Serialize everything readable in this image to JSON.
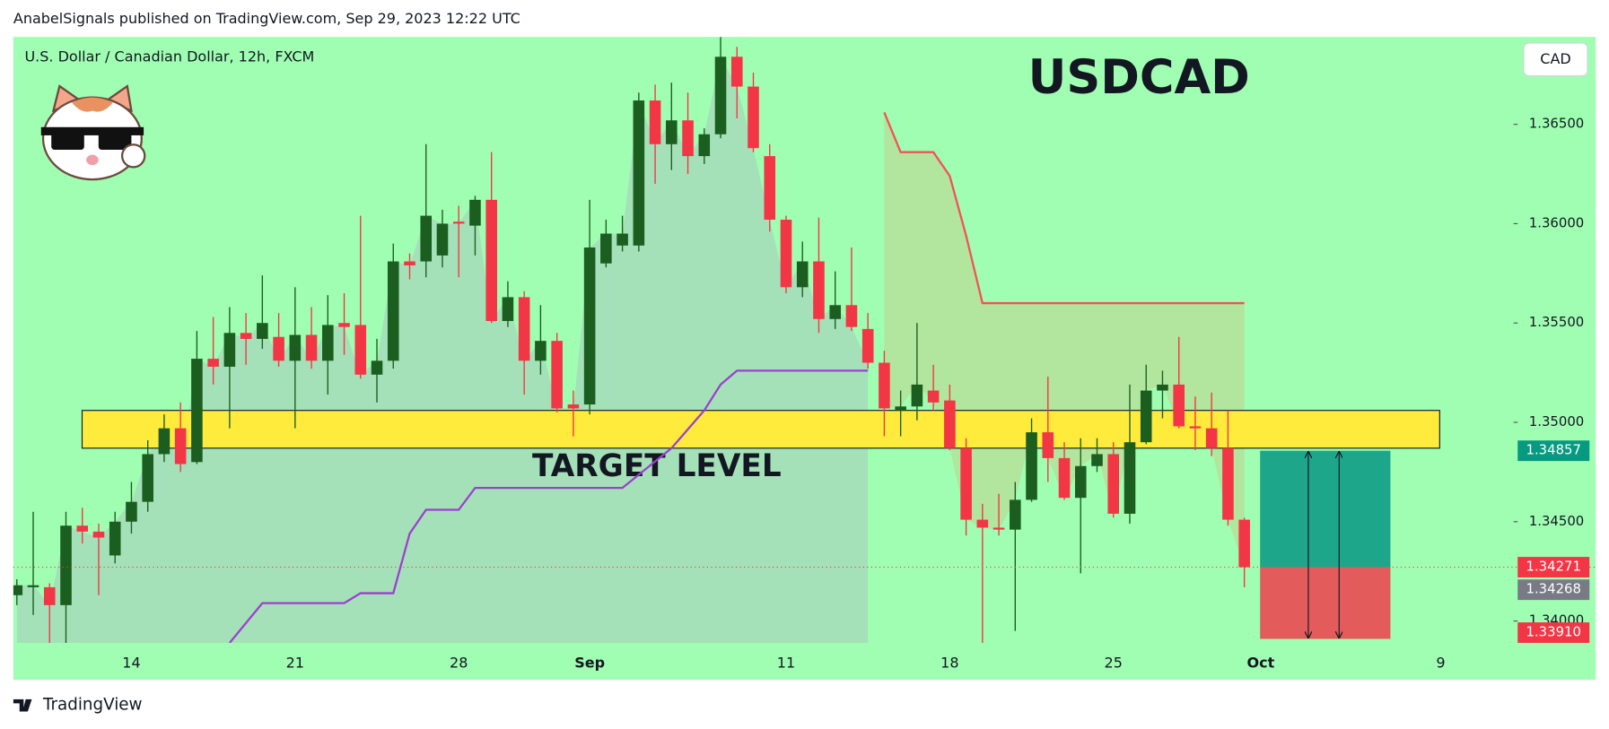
{
  "header": "AnabelSignals published on TradingView.com, Sep 29, 2023 12:22 UTC",
  "footer": "TradingView",
  "chart_data": {
    "type": "candlestick",
    "title": "USDCAD",
    "symbol": "U.S. Dollar / Canadian Dollar, 12h, FXCM",
    "currency": "CAD",
    "up_color": "#1b5e20",
    "down_color": "#f23645",
    "background": "#a0feb2",
    "grid": false,
    "categories": [
      null,
      null,
      null,
      null,
      null,
      null,
      null,
      "14",
      null,
      null,
      null,
      null,
      null,
      null,
      null,
      null,
      null,
      "21",
      null,
      null,
      null,
      null,
      null,
      null,
      null,
      null,
      null,
      "28",
      null,
      null,
      null,
      null,
      null,
      null,
      null,
      "Sep",
      null,
      null,
      null,
      null,
      null,
      null,
      null,
      null,
      null,
      null,
      null,
      "11",
      null,
      null,
      null,
      null,
      null,
      null,
      null,
      null,
      null,
      "18",
      null,
      null,
      null,
      null,
      null,
      null,
      null,
      null,
      null,
      "25",
      null,
      null,
      null,
      null,
      null,
      null,
      null,
      null,
      "Oct",
      null,
      null,
      null,
      null,
      null,
      null,
      null,
      null,
      null,
      null,
      "9",
      null,
      null,
      null,
      null
    ],
    "open": [
      1.3413,
      1.3417,
      1.3417,
      1.3408,
      1.3448,
      1.3445,
      1.3433,
      1.345,
      1.346,
      1.3484,
      1.3497,
      1.348,
      1.3532,
      1.3528,
      1.3545,
      1.3542,
      1.3543,
      1.3531,
      1.3544,
      1.3531,
      1.355,
      1.3549,
      1.3524,
      1.3531,
      1.3581,
      1.3581,
      1.3584,
      1.3601,
      1.3599,
      1.3612,
      1.3551,
      1.3563,
      1.3531,
      1.3541,
      1.3509,
      1.3509,
      1.358,
      1.3589,
      1.3589,
      1.3662,
      1.364,
      1.3652,
      1.3634,
      1.3645,
      1.3684,
      1.3669,
      1.3634,
      1.3602,
      1.3568,
      1.3581,
      1.3552,
      1.3559,
      1.3547,
      1.353,
      1.3506,
      1.3508,
      1.3516,
      1.3511,
      1.3487,
      1.3451,
      1.3447,
      1.3446,
      1.3461,
      1.3495,
      1.3482,
      1.3462,
      1.3478,
      1.3484,
      1.3454,
      1.349,
      1.3516,
      1.3519,
      1.3498,
      1.3497,
      1.3487,
      1.3451,
      null,
      null,
      null,
      null,
      null,
      null,
      null,
      null,
      null,
      null,
      null,
      null,
      null,
      null,
      null,
      null
    ],
    "high": [
      1.3421,
      1.3455,
      1.3419,
      1.3455,
      1.3457,
      1.3449,
      1.3455,
      1.347,
      1.3491,
      1.3504,
      1.351,
      1.3546,
      1.3553,
      1.3558,
      1.3555,
      1.3574,
      1.3555,
      1.3568,
      1.3558,
      1.3564,
      1.3565,
      1.3604,
      1.3542,
      1.359,
      1.3585,
      1.364,
      1.3607,
      1.3609,
      1.3614,
      1.3636,
      1.3571,
      1.3566,
      1.3559,
      1.3545,
      1.3516,
      1.3612,
      1.3602,
      1.3604,
      1.3666,
      1.367,
      1.3671,
      1.3666,
      1.3648,
      1.3694,
      1.3689,
      1.3676,
      1.364,
      1.3604,
      1.3591,
      1.3603,
      1.3576,
      1.3588,
      1.3555,
      1.3536,
      1.3516,
      1.355,
      1.3529,
      1.3519,
      1.3492,
      1.3459,
      1.3464,
      1.347,
      1.3502,
      1.3523,
      1.349,
      1.3492,
      1.3492,
      1.349,
      1.3519,
      1.3529,
      1.3526,
      1.3543,
      1.3513,
      1.3515,
      1.3506,
      1.3452,
      null,
      null,
      null,
      null,
      null,
      null,
      null,
      null,
      null,
      null,
      null,
      null,
      null,
      null,
      null,
      null
    ],
    "low": [
      1.3408,
      1.3403,
      1.3389,
      1.3389,
      1.3439,
      1.3413,
      1.3429,
      1.3444,
      1.3455,
      1.348,
      1.3475,
      1.3479,
      1.3519,
      1.3497,
      1.3529,
      1.3537,
      1.3528,
      1.3497,
      1.3527,
      1.3514,
      1.3534,
      1.3522,
      1.351,
      1.3527,
      1.3572,
      1.3573,
      1.3578,
      1.3573,
      1.3584,
      1.355,
      1.3548,
      1.3514,
      1.3524,
      1.3505,
      1.3493,
      1.3504,
      1.3578,
      1.3586,
      1.3586,
      1.362,
      1.3627,
      1.3625,
      1.363,
      1.3643,
      1.3653,
      1.3636,
      1.3596,
      1.3565,
      1.3563,
      1.3545,
      1.3547,
      1.3546,
      1.3527,
      1.3493,
      1.3493,
      1.3501,
      1.3506,
      1.3486,
      1.3443,
      1.3389,
      1.3443,
      1.3395,
      1.346,
      1.347,
      1.3461,
      1.3424,
      1.3475,
      1.3452,
      1.3449,
      1.3489,
      1.3502,
      1.3497,
      1.3486,
      1.3483,
      1.3448,
      1.3417,
      null,
      null,
      null,
      null,
      null,
      null,
      null,
      null,
      null,
      null,
      null,
      null,
      null,
      null,
      null,
      null
    ],
    "close": [
      1.3418,
      1.3418,
      1.3408,
      1.3448,
      1.3445,
      1.3442,
      1.345,
      1.346,
      1.3484,
      1.3497,
      1.3479,
      1.3532,
      1.3528,
      1.3545,
      1.3542,
      1.355,
      1.3531,
      1.3544,
      1.3531,
      1.3549,
      1.3548,
      1.3524,
      1.3531,
      1.3581,
      1.3579,
      1.3604,
      1.36,
      1.36,
      1.3612,
      1.3551,
      1.3563,
      1.3531,
      1.3541,
      1.3507,
      1.3507,
      1.3588,
      1.3595,
      1.3595,
      1.3662,
      1.364,
      1.3652,
      1.3634,
      1.3645,
      1.3684,
      1.3669,
      1.3638,
      1.3602,
      1.3568,
      1.3581,
      1.3552,
      1.3559,
      1.3548,
      1.353,
      1.3507,
      1.3508,
      1.3519,
      1.351,
      1.3487,
      1.3451,
      1.3447,
      1.3446,
      1.3461,
      1.3495,
      1.3482,
      1.3462,
      1.3478,
      1.3484,
      1.3454,
      1.349,
      1.3516,
      1.3519,
      1.3498,
      1.3497,
      1.3487,
      1.3451,
      1.34271,
      null,
      null,
      null,
      null,
      null,
      null,
      null,
      null,
      null,
      null,
      null,
      null,
      null,
      null,
      null,
      null
    ],
    "overlays": [
      {
        "color": "#f05454",
        "x": [
          53,
          54,
          56,
          57,
          58,
          59,
          75
        ],
        "values": [
          1.3656,
          1.3636,
          1.3636,
          1.3624,
          1.3594,
          1.356,
          1.356
        ]
      },
      {
        "color": "#9c3fd0",
        "x": [
          13,
          15,
          20,
          21,
          23,
          24,
          25,
          27,
          28,
          37,
          40,
          42,
          43,
          44,
          52
        ],
        "values": [
          1.3389,
          1.3409,
          1.3409,
          1.3414,
          1.3414,
          1.3444,
          1.3456,
          1.3456,
          1.3467,
          1.3467,
          1.3487,
          1.3506,
          1.3519,
          1.3526,
          1.3526
        ]
      }
    ],
    "zone": {
      "top": 1.3506,
      "bottom": 1.3487,
      "label": "TARGET LEVEL",
      "color": "#ffeb3b"
    },
    "price_labels": [
      {
        "value": 1.34857,
        "label": "1.34857",
        "color": "#089981"
      },
      {
        "value": 1.34271,
        "label": "1.34271",
        "color": "#f23645"
      },
      {
        "value": 1.34268,
        "label": "1.34268",
        "color": "#787b86"
      },
      {
        "value": 1.3391,
        "label": "1.33910",
        "color": "#f23645"
      }
    ],
    "ylim": [
      1.3389,
      1.3694
    ],
    "yticks": [
      {
        "value": 1.34,
        "label": "1.34000"
      },
      {
        "value": 1.345,
        "label": "1.34500"
      },
      {
        "value": 1.35,
        "label": "1.35000"
      },
      {
        "value": 1.355,
        "label": "1.35500"
      },
      {
        "value": 1.36,
        "label": "1.36000"
      },
      {
        "value": 1.365,
        "label": "1.36500"
      }
    ]
  }
}
